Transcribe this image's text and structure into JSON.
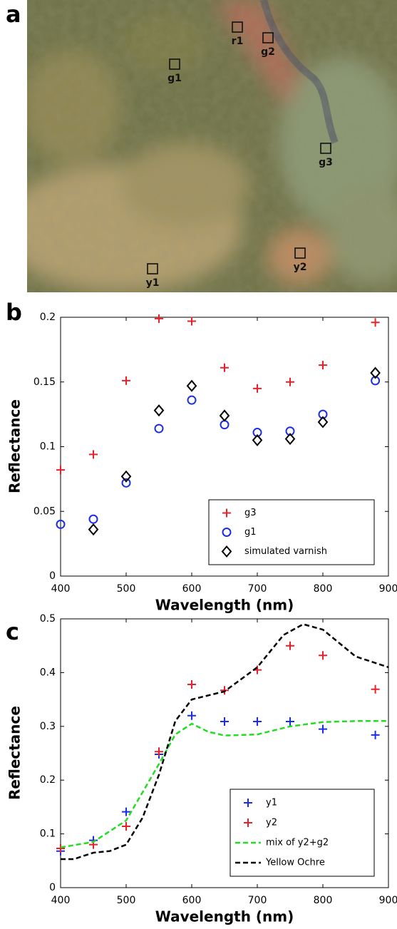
{
  "image": {
    "panel": "a",
    "regions": [
      {
        "label": "r1"
      },
      {
        "label": "g2"
      },
      {
        "label": "g1"
      },
      {
        "label": "g3"
      },
      {
        "label": "y2"
      },
      {
        "label": "y1"
      }
    ]
  },
  "chart_data": [
    {
      "type": "scatter",
      "panel": "b",
      "xlabel": "Wavelength (nm)",
      "ylabel": "Reflectance",
      "xlim": [
        400,
        900
      ],
      "xticks": [
        400,
        500,
        600,
        700,
        800,
        900
      ],
      "ylim": [
        0,
        0.2
      ],
      "yticks": [
        0,
        0.05,
        0.1,
        0.15,
        0.2
      ],
      "legend": "lower right",
      "series": [
        {
          "name": "g3",
          "color": "#e8202a",
          "marker": "+",
          "x": [
            400,
            450,
            500,
            550,
            600,
            650,
            700,
            750,
            800,
            880
          ],
          "values": [
            0.082,
            0.094,
            0.151,
            0.199,
            0.197,
            0.161,
            0.145,
            0.15,
            0.163,
            0.196
          ]
        },
        {
          "name": "g1",
          "color": "#1a2ee6",
          "marker": "o",
          "x": [
            400,
            450,
            500,
            550,
            600,
            650,
            700,
            750,
            800,
            880
          ],
          "values": [
            0.04,
            0.044,
            0.072,
            0.114,
            0.136,
            0.117,
            0.111,
            0.112,
            0.125,
            0.151
          ]
        },
        {
          "name": "simulated varnish",
          "color": "#000000",
          "marker": "d",
          "x": [
            450,
            500,
            550,
            600,
            650,
            700,
            750,
            800,
            880
          ],
          "values": [
            0.036,
            0.077,
            0.128,
            0.147,
            0.124,
            0.105,
            0.106,
            0.119,
            0.157
          ]
        }
      ]
    },
    {
      "type": "line",
      "panel": "c",
      "xlabel": "Wavelength (nm)",
      "ylabel": "Reflectance",
      "xlim": [
        400,
        900
      ],
      "xticks": [
        400,
        500,
        600,
        700,
        800,
        900
      ],
      "ylim": [
        0,
        0.5
      ],
      "yticks": [
        0,
        0.1,
        0.2,
        0.3,
        0.4,
        0.5
      ],
      "legend": "lower right",
      "series": [
        {
          "name": "y1",
          "color": "#1a2ee6",
          "marker": "+",
          "x": [
            400,
            450,
            500,
            550,
            600,
            650,
            700,
            750,
            800,
            880
          ],
          "values": [
            0.068,
            0.088,
            0.141,
            0.248,
            0.32,
            0.309,
            0.309,
            0.309,
            0.295,
            0.284
          ]
        },
        {
          "name": "y2",
          "color": "#e8202a",
          "marker": "+",
          "x": [
            400,
            450,
            500,
            550,
            600,
            650,
            700,
            750,
            800,
            880
          ],
          "values": [
            0.073,
            0.08,
            0.114,
            0.253,
            0.378,
            0.367,
            0.405,
            0.45,
            0.432,
            0.369
          ]
        },
        {
          "name": "mix of y2+g2",
          "color": "#22dd22",
          "linestyle": "dashed",
          "x": [
            400,
            450,
            500,
            550,
            575,
            600,
            625,
            650,
            700,
            750,
            800,
            850,
            900
          ],
          "values": [
            0.075,
            0.085,
            0.125,
            0.23,
            0.285,
            0.305,
            0.29,
            0.283,
            0.285,
            0.3,
            0.308,
            0.31,
            0.31
          ]
        },
        {
          "name": "Yellow Ochre",
          "color": "#000000",
          "linestyle": "dashed",
          "x": [
            400,
            420,
            450,
            475,
            500,
            525,
            550,
            575,
            600,
            650,
            700,
            740,
            770,
            800,
            850,
            900
          ],
          "values": [
            0.053,
            0.053,
            0.065,
            0.068,
            0.08,
            0.13,
            0.21,
            0.31,
            0.35,
            0.365,
            0.41,
            0.47,
            0.49,
            0.48,
            0.43,
            0.41
          ]
        }
      ]
    }
  ]
}
